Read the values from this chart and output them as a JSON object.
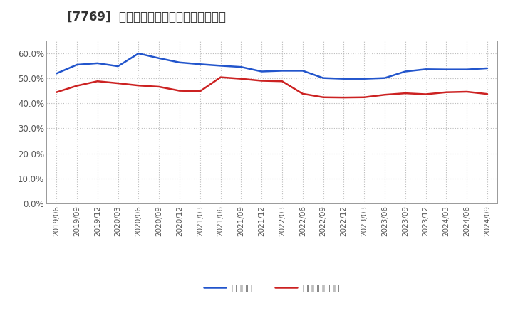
{
  "title": "[7769]  固定比率、固定長期適合率の推移",
  "blue_label": "固定比率",
  "red_label": "固定長期適合率",
  "blue_color": "#2255cc",
  "red_color": "#cc2222",
  "ylim": [
    0.0,
    0.65
  ],
  "yticks": [
    0.0,
    0.1,
    0.2,
    0.3,
    0.4,
    0.5,
    0.6
  ],
  "background_color": "#ffffff",
  "plot_bg_color": "#ffffff",
  "x_labels": [
    "2019/06",
    "2019/09",
    "2019/12",
    "2020/03",
    "2020/06",
    "2020/09",
    "2020/12",
    "2021/03",
    "2021/06",
    "2021/09",
    "2021/12",
    "2022/03",
    "2022/06",
    "2022/09",
    "2022/12",
    "2023/03",
    "2023/06",
    "2023/09",
    "2023/12",
    "2024/03",
    "2024/06",
    "2024/09"
  ],
  "blue_values": [
    0.519,
    0.554,
    0.56,
    0.548,
    0.599,
    0.58,
    0.563,
    0.556,
    0.55,
    0.545,
    0.527,
    0.53,
    0.53,
    0.501,
    0.498,
    0.498,
    0.501,
    0.527,
    0.536,
    0.535,
    0.535,
    0.54
  ],
  "red_values": [
    0.444,
    0.47,
    0.488,
    0.48,
    0.471,
    0.466,
    0.45,
    0.448,
    0.504,
    0.498,
    0.49,
    0.488,
    0.438,
    0.424,
    0.423,
    0.424,
    0.434,
    0.44,
    0.436,
    0.444,
    0.446,
    0.437
  ],
  "grid_color": "#bbbbbb",
  "spine_color": "#999999",
  "tick_label_color": "#555555",
  "title_color": "#333333",
  "title_fontsize": 12,
  "tick_fontsize": 7.5,
  "ytick_fontsize": 8.5,
  "line_width": 1.8,
  "legend_fontsize": 9
}
